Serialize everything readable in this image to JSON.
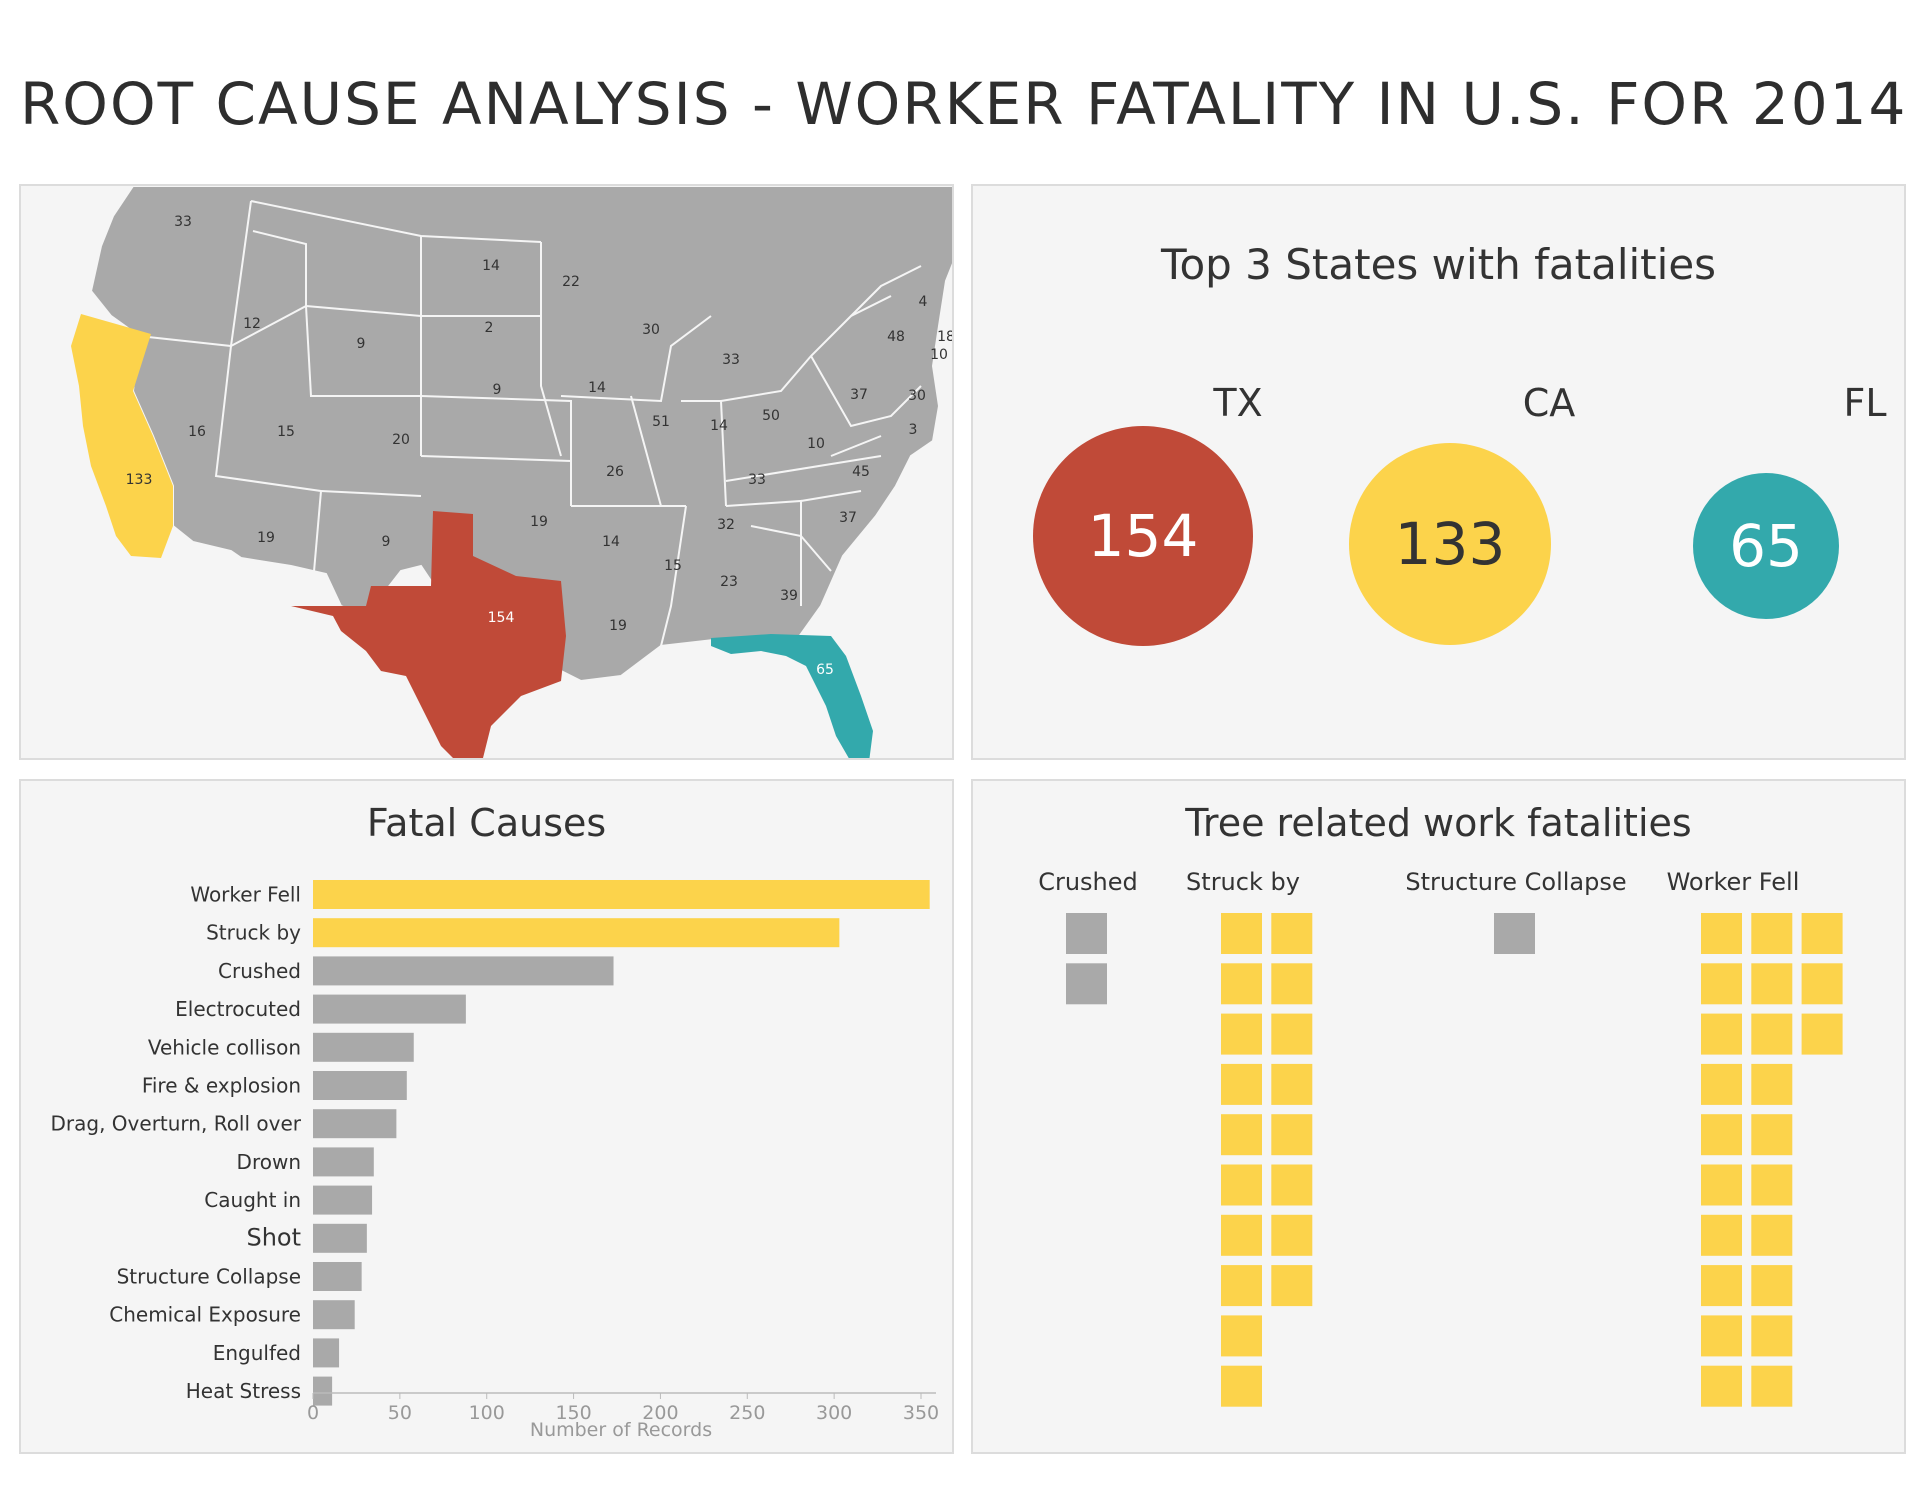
{
  "title": "ROOT CAUSE ANALYSIS - WORKER FATALITY IN U.S. FOR 2014",
  "colors": {
    "yellow": "#fcd34b",
    "red": "#c04a38",
    "teal": "#33a9ac",
    "gray": "#a9a9a9",
    "panel_bg": "#f5f5f5"
  },
  "map": {
    "labels": [
      "33",
      "14",
      "22",
      "12",
      "9",
      "2",
      "30",
      "33",
      "48",
      "4",
      "18",
      "10",
      "9",
      "14",
      "37",
      "30",
      "16",
      "15",
      "20",
      "51",
      "14",
      "50",
      "10",
      "3",
      "26",
      "33",
      "45",
      "133",
      "19",
      "9",
      "19",
      "14",
      "32",
      "37",
      "15",
      "23",
      "39",
      "154",
      "19",
      "65"
    ]
  },
  "top3": {
    "title": "Top 3 States with fatalities",
    "states": [
      {
        "state": "TX",
        "value": "154",
        "color": "#c04a38",
        "text_color": "#ffffff"
      },
      {
        "state": "CA",
        "value": "133",
        "color": "#fcd34b",
        "text_color": "#333333"
      },
      {
        "state": "FL",
        "value": "65",
        "color": "#33a9ac",
        "text_color": "#ffffff"
      }
    ]
  },
  "causes": {
    "title": "Fatal Causes"
  },
  "tree": {
    "title": "Tree related work fatalities",
    "columns": [
      {
        "label": "Crushed",
        "count": 2,
        "color": "#a9a9a9"
      },
      {
        "label": "Struck by",
        "count": 18,
        "color": "#fcd34b"
      },
      {
        "label": "Structure Collapse",
        "count": 1,
        "color": "#a9a9a9"
      },
      {
        "label": "Worker Fell",
        "count": 23,
        "color": "#fcd34b"
      }
    ]
  },
  "chart_data": {
    "type": "bar",
    "orientation": "horizontal",
    "title": "Fatal Causes",
    "xlabel": "Number of Records",
    "ylabel": "",
    "xlim": [
      0,
      360
    ],
    "xticks": [
      0,
      50,
      100,
      150,
      200,
      250,
      300,
      350
    ],
    "categories": [
      "Worker Fell",
      "Struck by",
      "Crushed",
      "Electrocuted",
      "Vehicle collison",
      "Fire & explosion",
      "Drag, Overturn, Roll over",
      "Drown",
      "Caught in",
      "Shot",
      "Structure Collapse",
      "Chemical Exposure",
      "Engulfed",
      "Heat Stress"
    ],
    "values": [
      355,
      303,
      173,
      88,
      58,
      54,
      48,
      35,
      34,
      31,
      28,
      24,
      15,
      11
    ],
    "highlighted": [
      "Worker Fell",
      "Struck by"
    ],
    "grid": false,
    "legend": "none"
  }
}
